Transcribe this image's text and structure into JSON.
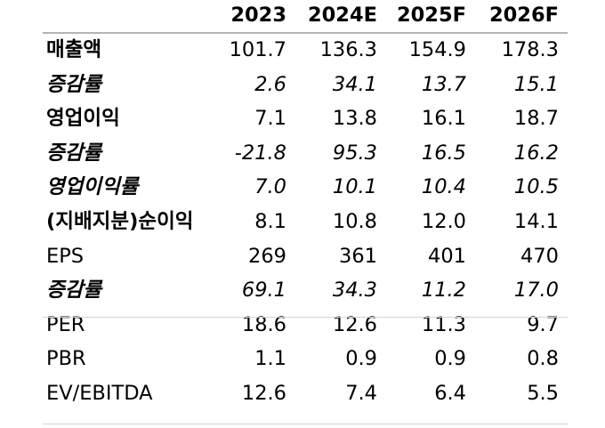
{
  "header": {
    "label": "",
    "years": [
      "2023",
      "2024E",
      "2025F",
      "2026F"
    ]
  },
  "rows": [
    {
      "label": "매출액",
      "values": [
        "101.7",
        "136.3",
        "154.9",
        "178.3"
      ],
      "italic": false
    },
    {
      "label": "증감률",
      "values": [
        "2.6",
        "34.1",
        "13.7",
        "15.1"
      ],
      "italic": true
    },
    {
      "label": "영업이익",
      "values": [
        "7.1",
        "13.8",
        "16.1",
        "18.7"
      ],
      "italic": false
    },
    {
      "label": "증감률",
      "values": [
        "-21.8",
        "95.3",
        "16.5",
        "16.2"
      ],
      "italic": true
    },
    {
      "label": "영업이익률",
      "values": [
        "7.0",
        "10.1",
        "10.4",
        "10.5"
      ],
      "italic": true
    },
    {
      "label": "(지배지분)순이익",
      "values": [
        "8.1",
        "10.8",
        "12.0",
        "14.1"
      ],
      "italic": false
    },
    {
      "label": "EPS",
      "values": [
        "269",
        "361",
        "401",
        "470"
      ],
      "italic": false
    },
    {
      "label": "증감률",
      "values": [
        "69.1",
        "34.3",
        "11.2",
        "17.0"
      ],
      "italic": true
    },
    {
      "label": "PER",
      "values": [
        "18.6",
        "12.6",
        "11.3",
        "9.7"
      ],
      "italic": false
    },
    {
      "label": "PBR",
      "values": [
        "1.1",
        "0.9",
        "0.9",
        "0.8"
      ],
      "italic": false
    },
    {
      "label": "EV/EBITDA",
      "values": [
        "12.6",
        "7.4",
        "6.4",
        "5.5"
      ],
      "italic": false
    }
  ],
  "colors": {
    "header_rule": "#b5b5b5",
    "row_rule": "#d4d4d4"
  }
}
